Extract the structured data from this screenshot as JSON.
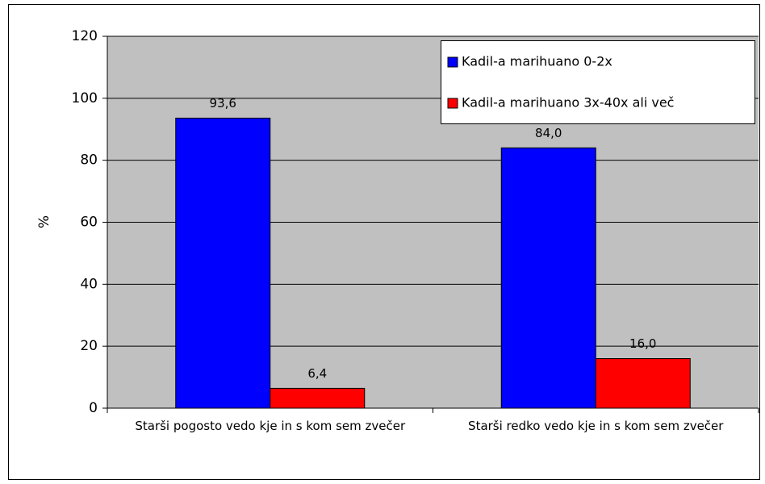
{
  "chart_data": {
    "type": "bar",
    "y_label": "%",
    "categories": [
      "Starši pogosto vedo kje in s kom sem zvečer",
      "Starši redko vedo kje in s kom sem zvečer"
    ],
    "series": [
      {
        "name": "Kadil-a marihuano 0-2x",
        "color": "#0000ff",
        "values": [
          93.6,
          84.0
        ],
        "value_labels": [
          "93,6",
          "84,0"
        ]
      },
      {
        "name": "Kadil-a marihuano 3x-40x ali več",
        "color": "#ff0000",
        "values": [
          6.4,
          16.0
        ],
        "value_labels": [
          "6,4",
          "16,0"
        ]
      }
    ],
    "ylim": [
      0,
      120
    ],
    "yticks": [
      0,
      20,
      40,
      60,
      80,
      100,
      120
    ],
    "grid": true,
    "legend": "upper right",
    "plot_background": "#c0c0c0"
  }
}
